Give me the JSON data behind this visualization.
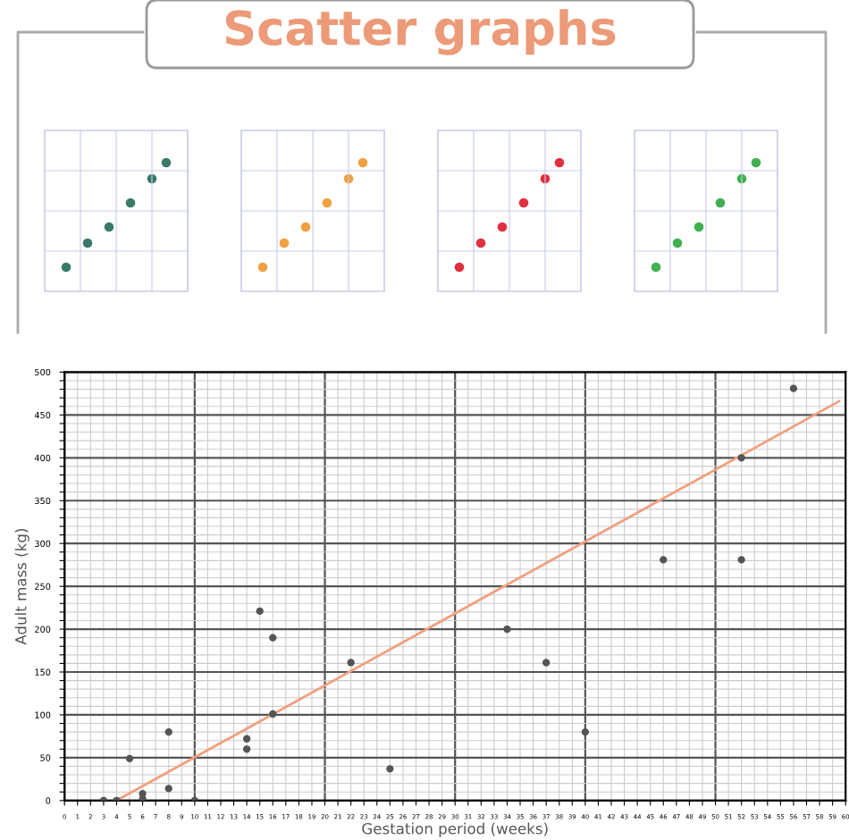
{
  "chart_data": {
    "type": "scatter",
    "title": "Scatter graphs",
    "xlabel": "Gestation period (weeks)",
    "ylabel": "Adult mass (kg)",
    "xlim": [
      0,
      60
    ],
    "ylim": [
      0,
      500
    ],
    "xticks": [
      0,
      1,
      2,
      3,
      4,
      5,
      6,
      7,
      8,
      9,
      10,
      11,
      12,
      13,
      14,
      15,
      16,
      17,
      18,
      19,
      20,
      21,
      22,
      23,
      24,
      25,
      26,
      27,
      28,
      29,
      30,
      31,
      32,
      33,
      34,
      35,
      36,
      37,
      38,
      39,
      40,
      41,
      42,
      43,
      44,
      45,
      46,
      47,
      48,
      49,
      50,
      51,
      52,
      53,
      54,
      55,
      56,
      57,
      58,
      59,
      60
    ],
    "yticks": [
      0,
      {
        "value": 10,
        "label": null
      },
      {
        "value": 20,
        "label": null
      },
      {
        "value": 30,
        "label": null
      },
      {
        "value": 40,
        "label": null
      },
      50,
      {
        "value": 60,
        "label": null
      },
      {
        "value": 70,
        "label": null
      },
      {
        "value": 80,
        "label": null
      },
      {
        "value": 90,
        "label": null
      },
      100,
      {
        "value": 110,
        "label": null
      },
      {
        "value": 120,
        "label": null
      },
      {
        "value": 130,
        "label": null
      },
      {
        "value": 140,
        "label": null
      },
      150,
      {
        "value": 160,
        "label": null
      },
      {
        "value": 170,
        "label": null
      },
      {
        "value": 180,
        "label": null
      },
      {
        "value": 190,
        "label": null
      },
      200,
      {
        "value": 210,
        "label": null
      },
      {
        "value": 220,
        "label": null
      },
      {
        "value": 230,
        "label": null
      },
      {
        "value": 240,
        "label": null
      },
      250,
      {
        "value": 260,
        "label": null
      },
      {
        "value": 270,
        "label": null
      },
      {
        "value": 280,
        "label": null
      },
      {
        "value": 290,
        "label": null
      },
      300,
      {
        "value": 310,
        "label": null
      },
      {
        "value": 320,
        "label": null
      },
      {
        "value": 330,
        "label": null
      },
      {
        "value": 340,
        "label": null
      },
      350,
      {
        "value": 360,
        "label": null
      },
      {
        "value": 370,
        "label": null
      },
      {
        "value": 380,
        "label": null
      },
      {
        "value": 390,
        "label": null
      },
      400,
      {
        "value": 410,
        "label": null
      },
      {
        "value": 420,
        "label": null
      },
      {
        "value": 430,
        "label": null
      },
      {
        "value": 440,
        "label": null
      },
      450,
      {
        "value": 460,
        "label": null
      },
      {
        "value": 470,
        "label": null
      },
      {
        "value": 480,
        "label": null
      },
      {
        "value": 490,
        "label": null
      },
      500
    ],
    "grid": true,
    "marker": "circle",
    "series": [
      {
        "color": "#555555",
        "x": [
          3,
          4,
          5,
          6,
          6,
          8,
          8,
          10,
          14,
          14,
          15,
          16,
          16,
          22,
          25,
          34,
          37,
          40,
          46,
          52,
          52,
          56
        ],
        "values": [
          0,
          0,
          49,
          8,
          2,
          80,
          14,
          0,
          72,
          60,
          221,
          190,
          101,
          161,
          37,
          200,
          161,
          80,
          281,
          281,
          400,
          481
        ]
      },
      {
        "type": "line",
        "color": "#f0a080",
        "marker": "none",
        "x": [
          4,
          59.5
        ],
        "values": [
          0,
          466
        ]
      }
    ]
  }
}
